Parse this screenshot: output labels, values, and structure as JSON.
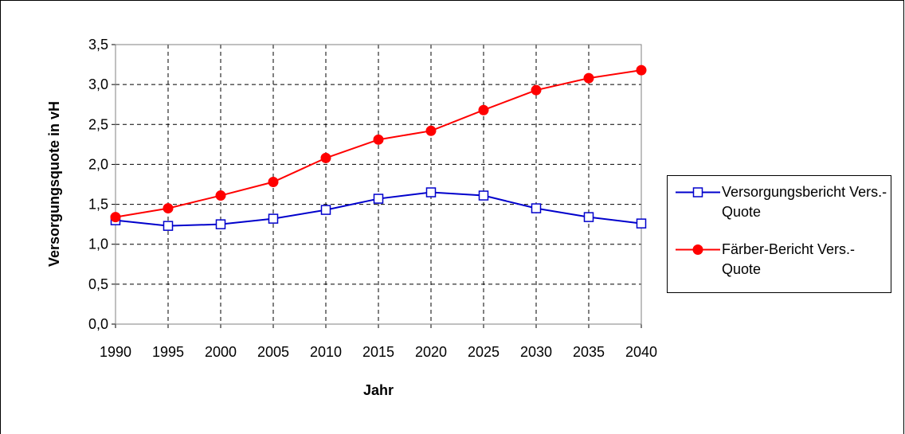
{
  "chart_data": {
    "type": "line",
    "x": [
      1990,
      1995,
      2000,
      2005,
      2010,
      2015,
      2020,
      2025,
      2030,
      2035,
      2040
    ],
    "series": [
      {
        "name": "Versorgungsbericht Vers.-Quote",
        "color": "#0000cc",
        "marker": "square",
        "values": [
          1.3,
          1.23,
          1.25,
          1.32,
          1.43,
          1.57,
          1.65,
          1.61,
          1.45,
          1.34,
          1.26
        ]
      },
      {
        "name": "Färber-Bericht Vers.-Quote",
        "color": "#ff0000",
        "marker": "circle",
        "values": [
          1.34,
          1.45,
          1.61,
          1.78,
          2.08,
          2.31,
          2.42,
          2.68,
          2.93,
          3.08,
          3.18
        ]
      }
    ],
    "xlabel": "Jahr",
    "ylabel": "Versorgungsquote in vH",
    "xlim": [
      1990,
      2040
    ],
    "xticks": [
      1990,
      1995,
      2000,
      2005,
      2010,
      2015,
      2020,
      2025,
      2030,
      2035,
      2040
    ],
    "ylim": [
      0,
      3.5
    ],
    "yticks": [
      {
        "value": 0,
        "label": "0,0"
      },
      {
        "value": 0.5,
        "label": "0,5"
      },
      {
        "value": 1,
        "label": "1,0"
      },
      {
        "value": 1.5,
        "label": "1,5"
      },
      {
        "value": 2,
        "label": "2,0"
      },
      {
        "value": 2.5,
        "label": "2,5"
      },
      {
        "value": 3,
        "label": "3,0"
      },
      {
        "value": 3.5,
        "label": "3,5"
      }
    ],
    "grid": true,
    "legend": "right"
  }
}
